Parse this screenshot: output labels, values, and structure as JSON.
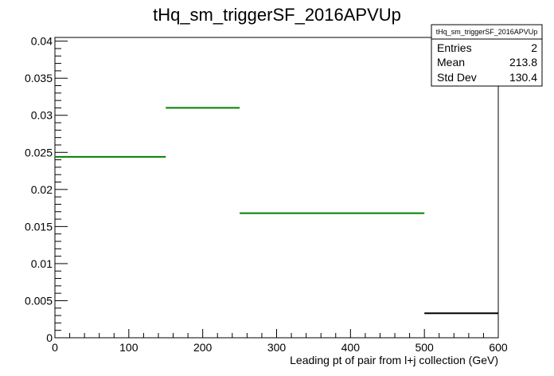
{
  "chart_data": {
    "type": "histogram",
    "title": "tHq_sm_triggerSF_2016APVUp",
    "xlabel": "Leading pt of pair from l+j collection (GeV)",
    "ylabel": "",
    "xlim": [
      0,
      600
    ],
    "ylim": [
      0,
      0.0405
    ],
    "x_ticks": [
      0,
      100,
      200,
      300,
      400,
      500,
      600
    ],
    "x_tick_labels": [
      "0",
      "100",
      "200",
      "300",
      "400",
      "500",
      "600"
    ],
    "y_ticks": [
      0,
      0.005,
      0.01,
      0.015,
      0.02,
      0.025,
      0.03,
      0.035,
      0.04
    ],
    "y_tick_labels": [
      "0",
      "0.005",
      "0.01",
      "0.015",
      "0.02",
      "0.025",
      "0.03",
      "0.035",
      "0.04"
    ],
    "grid": false,
    "bins": [
      {
        "x_low": 0,
        "x_high": 150,
        "value": 0.0244,
        "color": "#008000"
      },
      {
        "x_low": 150,
        "x_high": 250,
        "value": 0.031,
        "color": "#008000"
      },
      {
        "x_low": 250,
        "x_high": 500,
        "value": 0.0168,
        "color": "#008000"
      },
      {
        "x_low": 500,
        "x_high": 600,
        "value": 0.0033,
        "color": "#000000"
      }
    ],
    "stats_box": {
      "title": "tHq_sm_triggerSF_2016APVUp",
      "entries_label": "Entries",
      "entries_value": "2",
      "mean_label": "Mean",
      "mean_value": "213.8",
      "stddev_label": "Std Dev",
      "stddev_value": "130.4",
      "placement": "top-right"
    }
  }
}
